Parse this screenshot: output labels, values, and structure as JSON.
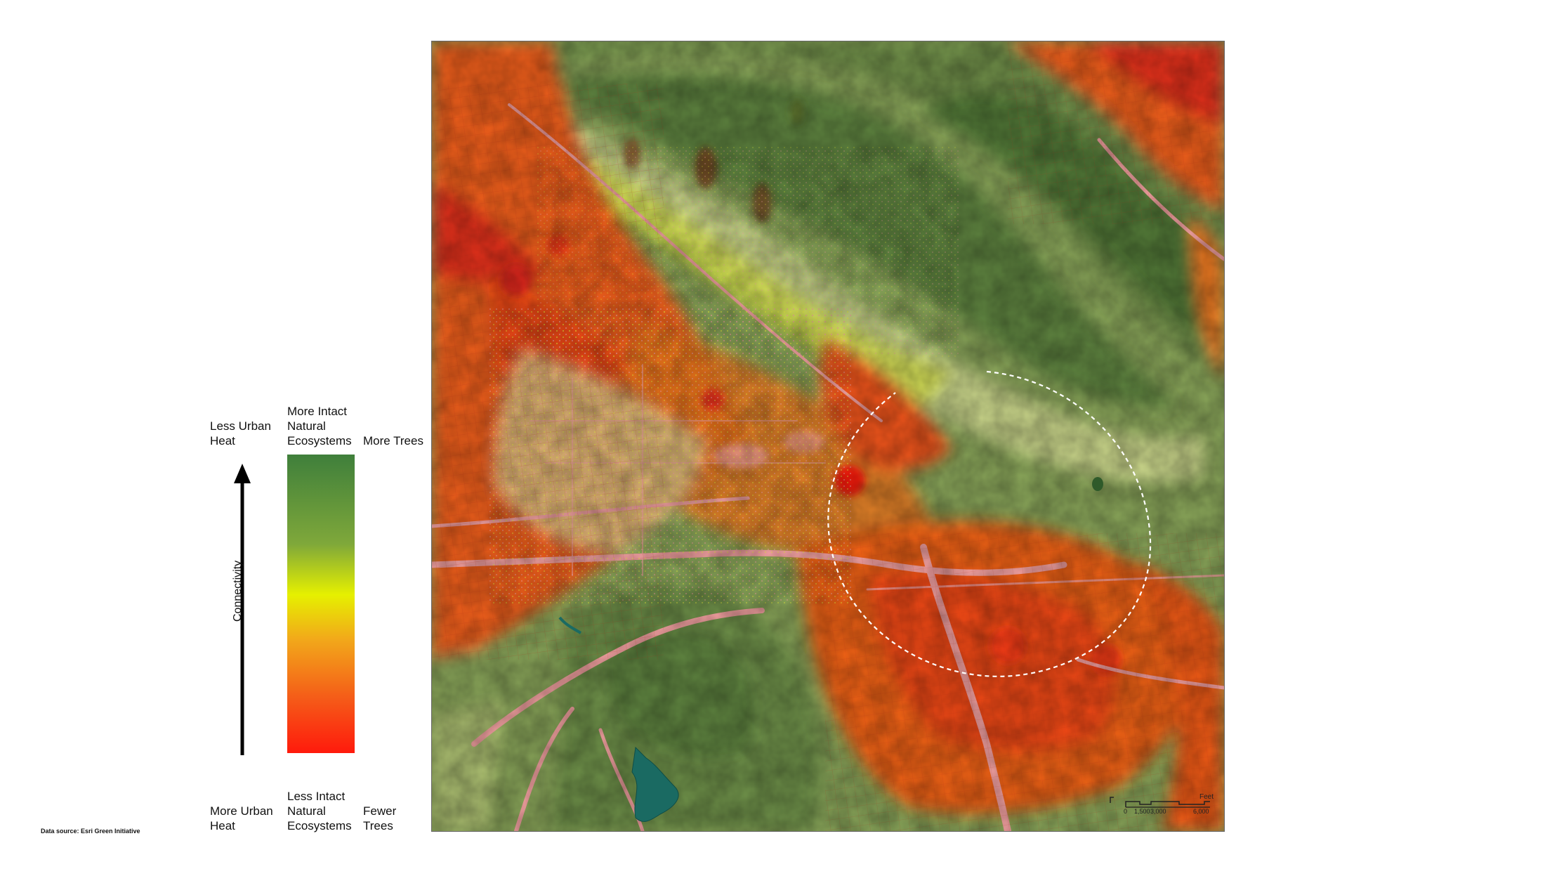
{
  "legend": {
    "top_left": "Less Urban\nHeat",
    "top_middle": "More Intact\nNatural\nEcosystems",
    "top_right": "More Trees",
    "bottom_left": "More Urban\nHeat",
    "bottom_middle": "Less Intact\nNatural\nEcosystems",
    "bottom_right": "Fewer\nTrees",
    "axis_label": "Connectivity",
    "gradient_colors": [
      "#3f7f3b",
      "#7fa83a",
      "#e6f000",
      "#f2a81a",
      "#f55a18",
      "#ff1a0c"
    ]
  },
  "source": "Data source: Esri Green Initiative",
  "map": {
    "scalebar": {
      "unit": "Feet",
      "ticks": [
        "0",
        "1,500",
        "3,000",
        "6,000"
      ]
    },
    "colors": {
      "hills": "#6f8f48",
      "hills_dark": "#4f7a35",
      "urban_hot": "#f25a12",
      "urban_hotter": "#ee2a10",
      "transition": "#e7f23a",
      "valley": "#c9d58a",
      "roads": "#f2a0a0",
      "water": "#1a6a62"
    }
  }
}
